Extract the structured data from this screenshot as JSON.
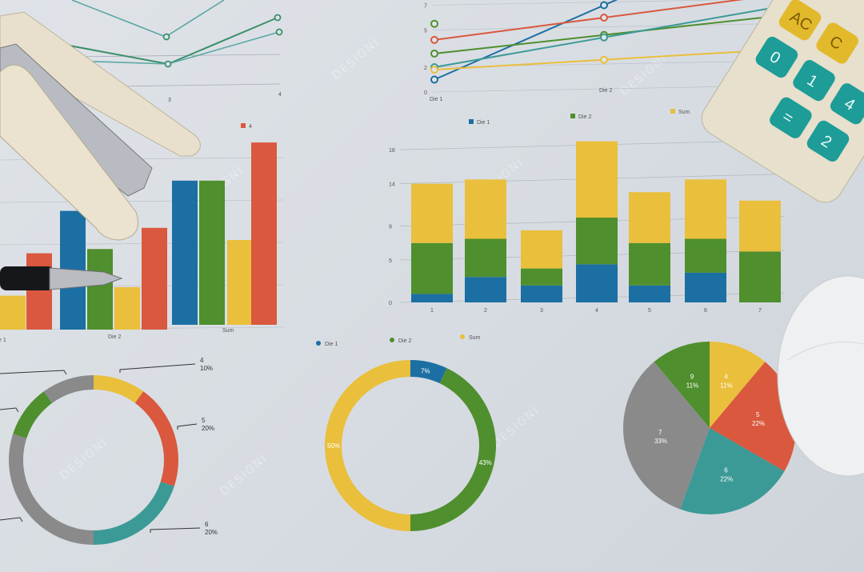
{
  "scene": {
    "objects": [
      "stapler",
      "pen",
      "calculator",
      "mouse"
    ],
    "watermark": "DESIGNI",
    "colors": {
      "paper": "#dde1e6",
      "blue": "#1c6fa3",
      "green": "#4f8f2e",
      "yellow": "#e9bf3c",
      "red": "#d9583e",
      "teal": "#3b9a96",
      "gray": "#8a8a8a"
    }
  },
  "calculator": {
    "keys": [
      "C",
      "AC",
      "4",
      "1",
      "0",
      "2",
      "="
    ]
  },
  "chart_data": [
    {
      "type": "line",
      "id": "top-left-line",
      "x": [
        "3",
        "4"
      ],
      "series": [
        {
          "color": "#3a8f6a",
          "values": [
            1.5,
            3.5
          ]
        },
        {
          "color": "#5aa7a4",
          "values": [
            2.8,
            3.2
          ]
        }
      ]
    },
    {
      "type": "line",
      "id": "top-right-line",
      "x": [
        "Die 1",
        "Die 2"
      ],
      "y_ticks": [
        "0",
        "2",
        "5",
        "7"
      ],
      "ylim": [
        0,
        7
      ],
      "series": [
        {
          "color": "#1c6fa3",
          "values": [
            1,
            7
          ]
        },
        {
          "color": "#d9583e",
          "values": [
            4.2,
            6
          ]
        },
        {
          "color": "#4f8f2e",
          "values": [
            3.1,
            4.6
          ]
        },
        {
          "color": "#3b9a96",
          "values": [
            2,
            4.4
          ]
        },
        {
          "color": "#e9bf3c",
          "values": [
            1.8,
            2.6
          ]
        }
      ],
      "extra_marker": {
        "color": "#4f8f2e",
        "x": "Die 1",
        "value": 5.5
      }
    },
    {
      "type": "bar",
      "id": "left-grouped-bar",
      "legend": [
        {
          "label": "4",
          "color": "#d9583e"
        }
      ],
      "categories": [
        "Die 1",
        "Die 2",
        "Sum"
      ],
      "category_labels_visible": [
        "e 1",
        "Die 2",
        "Sum"
      ],
      "groups": [
        {
          "bars": [
            {
              "color": "#e9bf3c",
              "value": 0.8
            },
            {
              "color": "#d9583e",
              "value": 1.8
            }
          ]
        },
        {
          "bars": [
            {
              "color": "#1c6fa3",
              "value": 2.8
            },
            {
              "color": "#4f8f2e",
              "value": 1.9
            },
            {
              "color": "#e9bf3c",
              "value": 1.0
            },
            {
              "color": "#d9583e",
              "value": 2.4
            }
          ]
        },
        {
          "bars": [
            {
              "color": "#1c6fa3",
              "value": 3.4
            },
            {
              "color": "#4f8f2e",
              "value": 3.4
            },
            {
              "color": "#e9bf3c",
              "value": 2.0
            },
            {
              "color": "#d9583e",
              "value": 4.3
            }
          ]
        }
      ]
    },
    {
      "type": "bar",
      "id": "stacked-bar",
      "stacked": true,
      "legend": [
        {
          "label": "Die 1",
          "color": "#1c6fa3"
        },
        {
          "label": "Die 2",
          "color": "#4f8f2e"
        },
        {
          "label": "Sum",
          "color": "#e9bf3c"
        }
      ],
      "categories": [
        "1",
        "2",
        "3",
        "4",
        "5",
        "6",
        "7"
      ],
      "y_ticks": [
        "0",
        "5",
        "9",
        "14",
        "18"
      ],
      "y_tick_values": [
        0,
        5,
        9,
        14,
        18
      ],
      "ylim": [
        0,
        18
      ],
      "grid": true,
      "series": [
        {
          "name": "Die 1",
          "values": [
            1,
            3,
            2,
            4.5,
            2,
            3.5,
            0
          ]
        },
        {
          "name": "Die 2",
          "values": [
            6,
            4.5,
            2,
            5.5,
            5,
            4,
            6
          ]
        },
        {
          "name": "Sum",
          "values": [
            7,
            7,
            4.5,
            9,
            6,
            7,
            6
          ]
        }
      ]
    },
    {
      "type": "pie",
      "id": "left-donut",
      "donut": true,
      "slices": [
        {
          "label": "4",
          "pct": "10%",
          "value": 10,
          "color": "#e9bf3c"
        },
        {
          "label": "5",
          "pct": "20%",
          "value": 20,
          "color": "#d9583e"
        },
        {
          "label": "6",
          "pct": "20%",
          "value": 20,
          "color": "#3b9a96"
        },
        {
          "label": "",
          "pct": "",
          "value": 30,
          "color": "#8a8a8a"
        },
        {
          "label": "",
          "pct": "",
          "value": 10,
          "color": "#4f8f2e"
        },
        {
          "label": "",
          "pct": "",
          "value": 10,
          "color": "#8a8a8a"
        }
      ]
    },
    {
      "type": "pie",
      "id": "middle-donut",
      "donut": true,
      "legend": [
        {
          "label": "Die 1",
          "color": "#1c6fa3"
        },
        {
          "label": "Die 2",
          "color": "#4f8f2e"
        },
        {
          "label": "Sum",
          "color": "#e9bf3c"
        }
      ],
      "slices": [
        {
          "label": "7%",
          "value": 7,
          "color": "#1c6fa3"
        },
        {
          "label": "43%",
          "value": 43,
          "color": "#4f8f2e"
        },
        {
          "label": "50%",
          "value": 50,
          "color": "#e9bf3c"
        }
      ]
    },
    {
      "type": "pie",
      "id": "right-pie",
      "slices": [
        {
          "label": "4",
          "pct": "11%",
          "value": 11,
          "color": "#e9bf3c"
        },
        {
          "label": "5",
          "pct": "22%",
          "value": 22,
          "color": "#d9583e"
        },
        {
          "label": "6",
          "pct": "22%",
          "value": 22,
          "color": "#3b9a96"
        },
        {
          "label": "7",
          "pct": "33%",
          "value": 33,
          "color": "#8a8a8a"
        },
        {
          "label": "9",
          "pct": "11%",
          "value": 11,
          "color": "#4f8f2e"
        }
      ]
    }
  ]
}
